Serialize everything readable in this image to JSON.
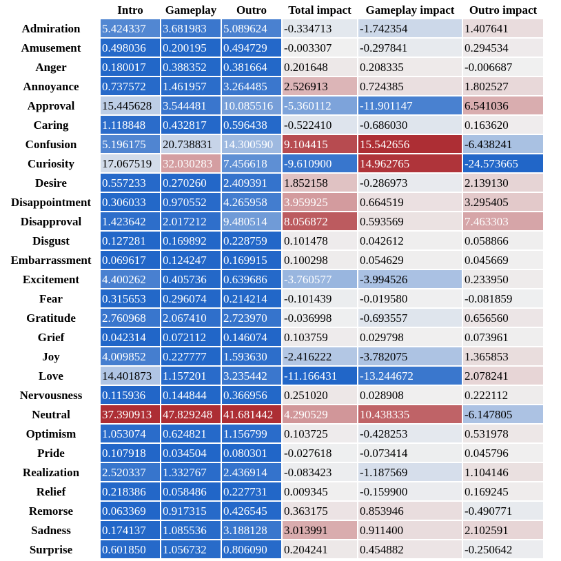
{
  "chart_data": {
    "type": "heatmap",
    "columns": [
      "Intro",
      "Gameplay",
      "Outro",
      "Total impact",
      "Gameplay impact",
      "Outro impact"
    ],
    "rows": [
      "Admiration",
      "Amusement",
      "Anger",
      "Annoyance",
      "Approval",
      "Caring",
      "Confusion",
      "Curiosity",
      "Desire",
      "Disappointment",
      "Disapproval",
      "Disgust",
      "Embarrassment",
      "Excitement",
      "Fear",
      "Gratitude",
      "Grief",
      "Joy",
      "Love",
      "Nervousness",
      "Neutral",
      "Optimism",
      "Pride",
      "Realization",
      "Relief",
      "Remorse",
      "Sadness",
      "Surprise"
    ],
    "values": [
      [
        "5.424337",
        "3.681983",
        "5.089624",
        "-0.334713",
        "-1.742354",
        "1.407641"
      ],
      [
        "0.498036",
        "0.200195",
        "0.494729",
        "-0.003307",
        "-0.297841",
        "0.294534"
      ],
      [
        "0.180017",
        "0.388352",
        "0.381664",
        "0.201648",
        "0.208335",
        "-0.006687"
      ],
      [
        "0.737572",
        "1.461957",
        "3.264485",
        "2.526913",
        "0.724385",
        "1.802527"
      ],
      [
        "15.445628",
        "3.544481",
        "10.085516",
        "-5.360112",
        "-11.901147",
        "6.541036"
      ],
      [
        "1.118848",
        "0.432817",
        "0.596438",
        "-0.522410",
        "-0.686030",
        "0.163620"
      ],
      [
        "5.196175",
        "20.738831",
        "14.300590",
        "9.104415",
        "15.542656",
        "-6.438241"
      ],
      [
        "17.067519",
        "32.030283",
        "7.456618",
        "-9.610900",
        "14.962765",
        "-24.573665"
      ],
      [
        "0.557233",
        "0.270260",
        "2.409391",
        "1.852158",
        "-0.286973",
        "2.139130"
      ],
      [
        "0.306033",
        "0.970552",
        "4.265958",
        "3.959925",
        "0.664519",
        "3.295405"
      ],
      [
        "1.423642",
        "2.017212",
        "9.480514",
        "8.056872",
        "0.593569",
        "7.463303"
      ],
      [
        "0.127281",
        "0.169892",
        "0.228759",
        "0.101478",
        "0.042612",
        "0.058866"
      ],
      [
        "0.069617",
        "0.124247",
        "0.169915",
        "0.100298",
        "0.054629",
        "0.045669"
      ],
      [
        "4.400262",
        "0.405736",
        "0.639686",
        "-3.760577",
        "-3.994526",
        "0.233950"
      ],
      [
        "0.315653",
        "0.296074",
        "0.214214",
        "-0.101439",
        "-0.019580",
        "-0.081859"
      ],
      [
        "2.760968",
        "2.067410",
        "2.723970",
        "-0.036998",
        "-0.693557",
        "0.656560"
      ],
      [
        "0.042314",
        "0.072112",
        "0.146074",
        "0.103759",
        "0.029798",
        "0.073961"
      ],
      [
        "4.009852",
        "0.227777",
        "1.593630",
        "-2.416222",
        "-3.782075",
        "1.365853"
      ],
      [
        "14.401873",
        "1.157201",
        "3.235442",
        "-11.166431",
        "-13.244672",
        "2.078241"
      ],
      [
        "0.115936",
        "0.144844",
        "0.366956",
        "0.251020",
        "0.028908",
        "0.222112"
      ],
      [
        "37.390913",
        "47.829248",
        "41.681442",
        "4.290529",
        "10.438335",
        "-6.147805"
      ],
      [
        "1.053074",
        "0.624821",
        "1.156799",
        "0.103725",
        "-0.428253",
        "0.531978"
      ],
      [
        "0.107918",
        "0.034504",
        "0.080301",
        "-0.027618",
        "-0.073414",
        "0.045796"
      ],
      [
        "2.520337",
        "1.332767",
        "2.436914",
        "-0.083423",
        "-1.187569",
        "1.104146"
      ],
      [
        "0.218386",
        "0.058486",
        "0.227731",
        "0.009345",
        "-0.159900",
        "0.169245"
      ],
      [
        "0.063369",
        "0.917315",
        "0.426545",
        "0.363175",
        "0.853946",
        "-0.490771"
      ],
      [
        "0.174137",
        "1.085536",
        "3.188128",
        "3.013991",
        "0.911400",
        "2.102591"
      ],
      [
        "0.601850",
        "1.056732",
        "0.806090",
        "0.204241",
        "0.454882",
        "-0.250642"
      ]
    ],
    "color_scale": {
      "name": "coolwarm",
      "cool": "#3b4cc0",
      "blue": "#2166c8",
      "neutral": "#f0f0f0",
      "red": "#ad2e34"
    }
  }
}
